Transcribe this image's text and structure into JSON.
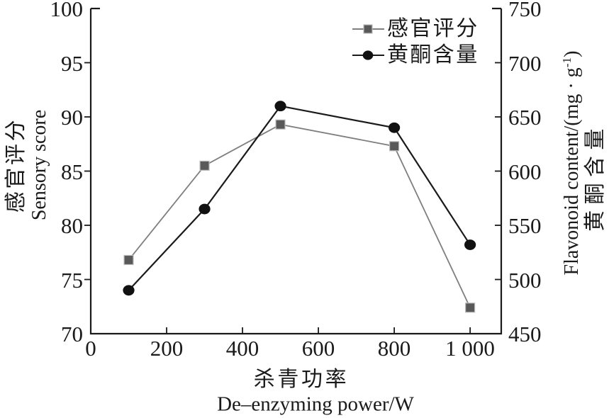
{
  "figure": {
    "background": "#ffffff",
    "ink_color": "#1a1a1a"
  },
  "chart_data": {
    "type": "line",
    "x": [
      100,
      300,
      500,
      800,
      1000
    ],
    "series": [
      {
        "name": "感官评分",
        "axis": "left",
        "marker": "square",
        "line_color": "#7f7f7f",
        "marker_color": "#595959",
        "marker_edge_color": "#bdbdbd",
        "values": [
          76.8,
          85.5,
          89.3,
          87.3,
          72.4
        ]
      },
      {
        "name": "黄酮含量",
        "axis": "right",
        "marker": "circle",
        "line_color": "#1a1a1a",
        "marker_color": "#111111",
        "marker_edge_color": "#111111",
        "values": [
          490,
          565,
          660,
          640,
          532
        ]
      }
    ],
    "x_axis": {
      "title_zh": "杀青功率",
      "title_en": "De–enzyming power/W",
      "range": [
        0,
        1082
      ],
      "ticks": [
        0,
        200,
        400,
        600,
        800,
        1000
      ],
      "tick_labels": [
        "0",
        "200",
        "400",
        "600",
        "800",
        "1 000"
      ]
    },
    "y_left": {
      "title_zh": "感官评分",
      "title_en": "Sensory score",
      "range": [
        70,
        100
      ],
      "ticks": [
        70,
        75,
        80,
        85,
        90,
        95,
        100
      ]
    },
    "y_right": {
      "title_en_pre": "Flavonoid content/(mg · g",
      "title_en_sup": "-1",
      "title_en_post": ")",
      "title_zh": "黄酮含量",
      "range": [
        450,
        750
      ],
      "ticks": [
        450,
        500,
        550,
        600,
        650,
        700,
        750
      ]
    },
    "legend": [
      {
        "label": "感官评分"
      },
      {
        "label": "黄酮含量"
      }
    ],
    "grid": false,
    "legend_position": "top-right-inside"
  }
}
